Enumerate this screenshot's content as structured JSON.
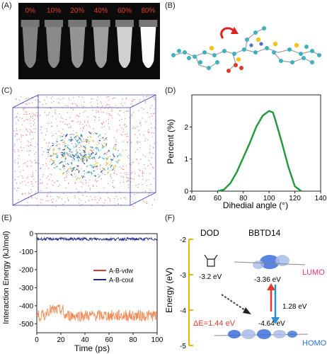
{
  "panels": {
    "a": {
      "label": "(A)",
      "tube_labels": [
        "0%",
        "10%",
        "20%",
        "40%",
        "60%",
        "80%"
      ],
      "tube_brightness": [
        0.42,
        0.45,
        0.5,
        0.55,
        0.78,
        0.98
      ],
      "label_color": "#e8392b"
    },
    "b": {
      "label": "(B)"
    },
    "c": {
      "label": "(C)"
    },
    "d": {
      "label": "(D)"
    },
    "e": {
      "label": "(E)"
    },
    "f": {
      "label": "(F)",
      "col_dod": "DOD",
      "col_bbtd": "BBTD14",
      "ylabel": "Energy (eV)",
      "yticks": [
        "-2",
        "-3",
        "-4",
        "-5"
      ],
      "dod_level": "-3.2 eV",
      "lumo_level": "-3.36 eV",
      "homo_level": "-4.64 eV",
      "gap": "1.28 eV",
      "delta": "ΔE=1.44 eV",
      "lumo": "LUMO",
      "homo": "HOMO",
      "colors": {
        "bracket": "#f0b400",
        "lumo": "#e8317a",
        "homo": "#2a6fd6",
        "delta": "#e8392b",
        "up_arrow": "#e8392b",
        "down_arrow": "#2a90d6"
      }
    }
  },
  "chart_data": [
    {
      "type": "line",
      "panel": "D",
      "xlabel": "Dihedial angle (°)",
      "ylabel": "Percent (%)",
      "xlim": [
        40,
        140
      ],
      "ylim": [
        0,
        3
      ],
      "xticks": [
        40,
        60,
        80,
        100,
        120,
        140
      ],
      "yticks": [
        0,
        1,
        2
      ],
      "series": [
        {
          "color": "#1f9a3a",
          "x": [
            60,
            65,
            70,
            75,
            80,
            85,
            90,
            95,
            100,
            103,
            105,
            110,
            115,
            120,
            125
          ],
          "y": [
            0.0,
            0.05,
            0.25,
            0.6,
            1.05,
            1.5,
            2.0,
            2.35,
            2.5,
            2.45,
            2.2,
            1.5,
            0.75,
            0.15,
            0.0
          ]
        }
      ]
    },
    {
      "type": "line",
      "panel": "E",
      "xlabel": "Time (ps)",
      "ylabel": "Interaction Energy (kJ/mol)",
      "xlim": [
        0,
        100
      ],
      "ylim": [
        -550,
        0
      ],
      "xticks": [
        0,
        20,
        40,
        60,
        80,
        100
      ],
      "yticks": [
        0,
        -100,
        -200,
        -300,
        -400,
        -500
      ],
      "legend_position": "center-right",
      "series": [
        {
          "name": "A-B-vdw",
          "color": "#e53b2c",
          "legend_color": "#e53b2c",
          "fill_color": "#f08c5a",
          "mean": -455,
          "spread": 32
        },
        {
          "name": "A-B-coul",
          "color": "#1f2a8a",
          "mean": -30,
          "spread": 8
        }
      ]
    }
  ]
}
